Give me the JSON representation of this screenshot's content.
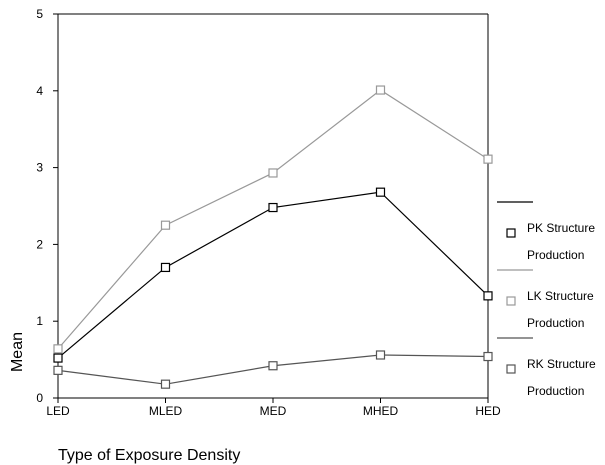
{
  "chart_data": {
    "type": "line",
    "title": "",
    "xlabel": "Type of Exposure Density",
    "ylabel": "Mean",
    "categories": [
      "LED",
      "MLED",
      "MED",
      "MHED",
      "HED"
    ],
    "y_ticks": [
      0,
      1,
      2,
      3,
      4,
      5
    ],
    "ylim": [
      0,
      5
    ],
    "grid": false,
    "legend_position": "right",
    "series": [
      {
        "name": "PK Structure Production",
        "color": "#000000",
        "marker": "open-square",
        "values": [
          0.52,
          1.7,
          2.48,
          2.68,
          1.33
        ]
      },
      {
        "name": "LK Structure Production",
        "color": "#999999",
        "marker": "open-square",
        "values": [
          0.64,
          2.25,
          2.93,
          4.01,
          3.11
        ]
      },
      {
        "name": "RK Structure Production",
        "color": "#555555",
        "marker": "open-square",
        "values": [
          0.36,
          0.18,
          0.42,
          0.56,
          0.54
        ]
      }
    ]
  }
}
